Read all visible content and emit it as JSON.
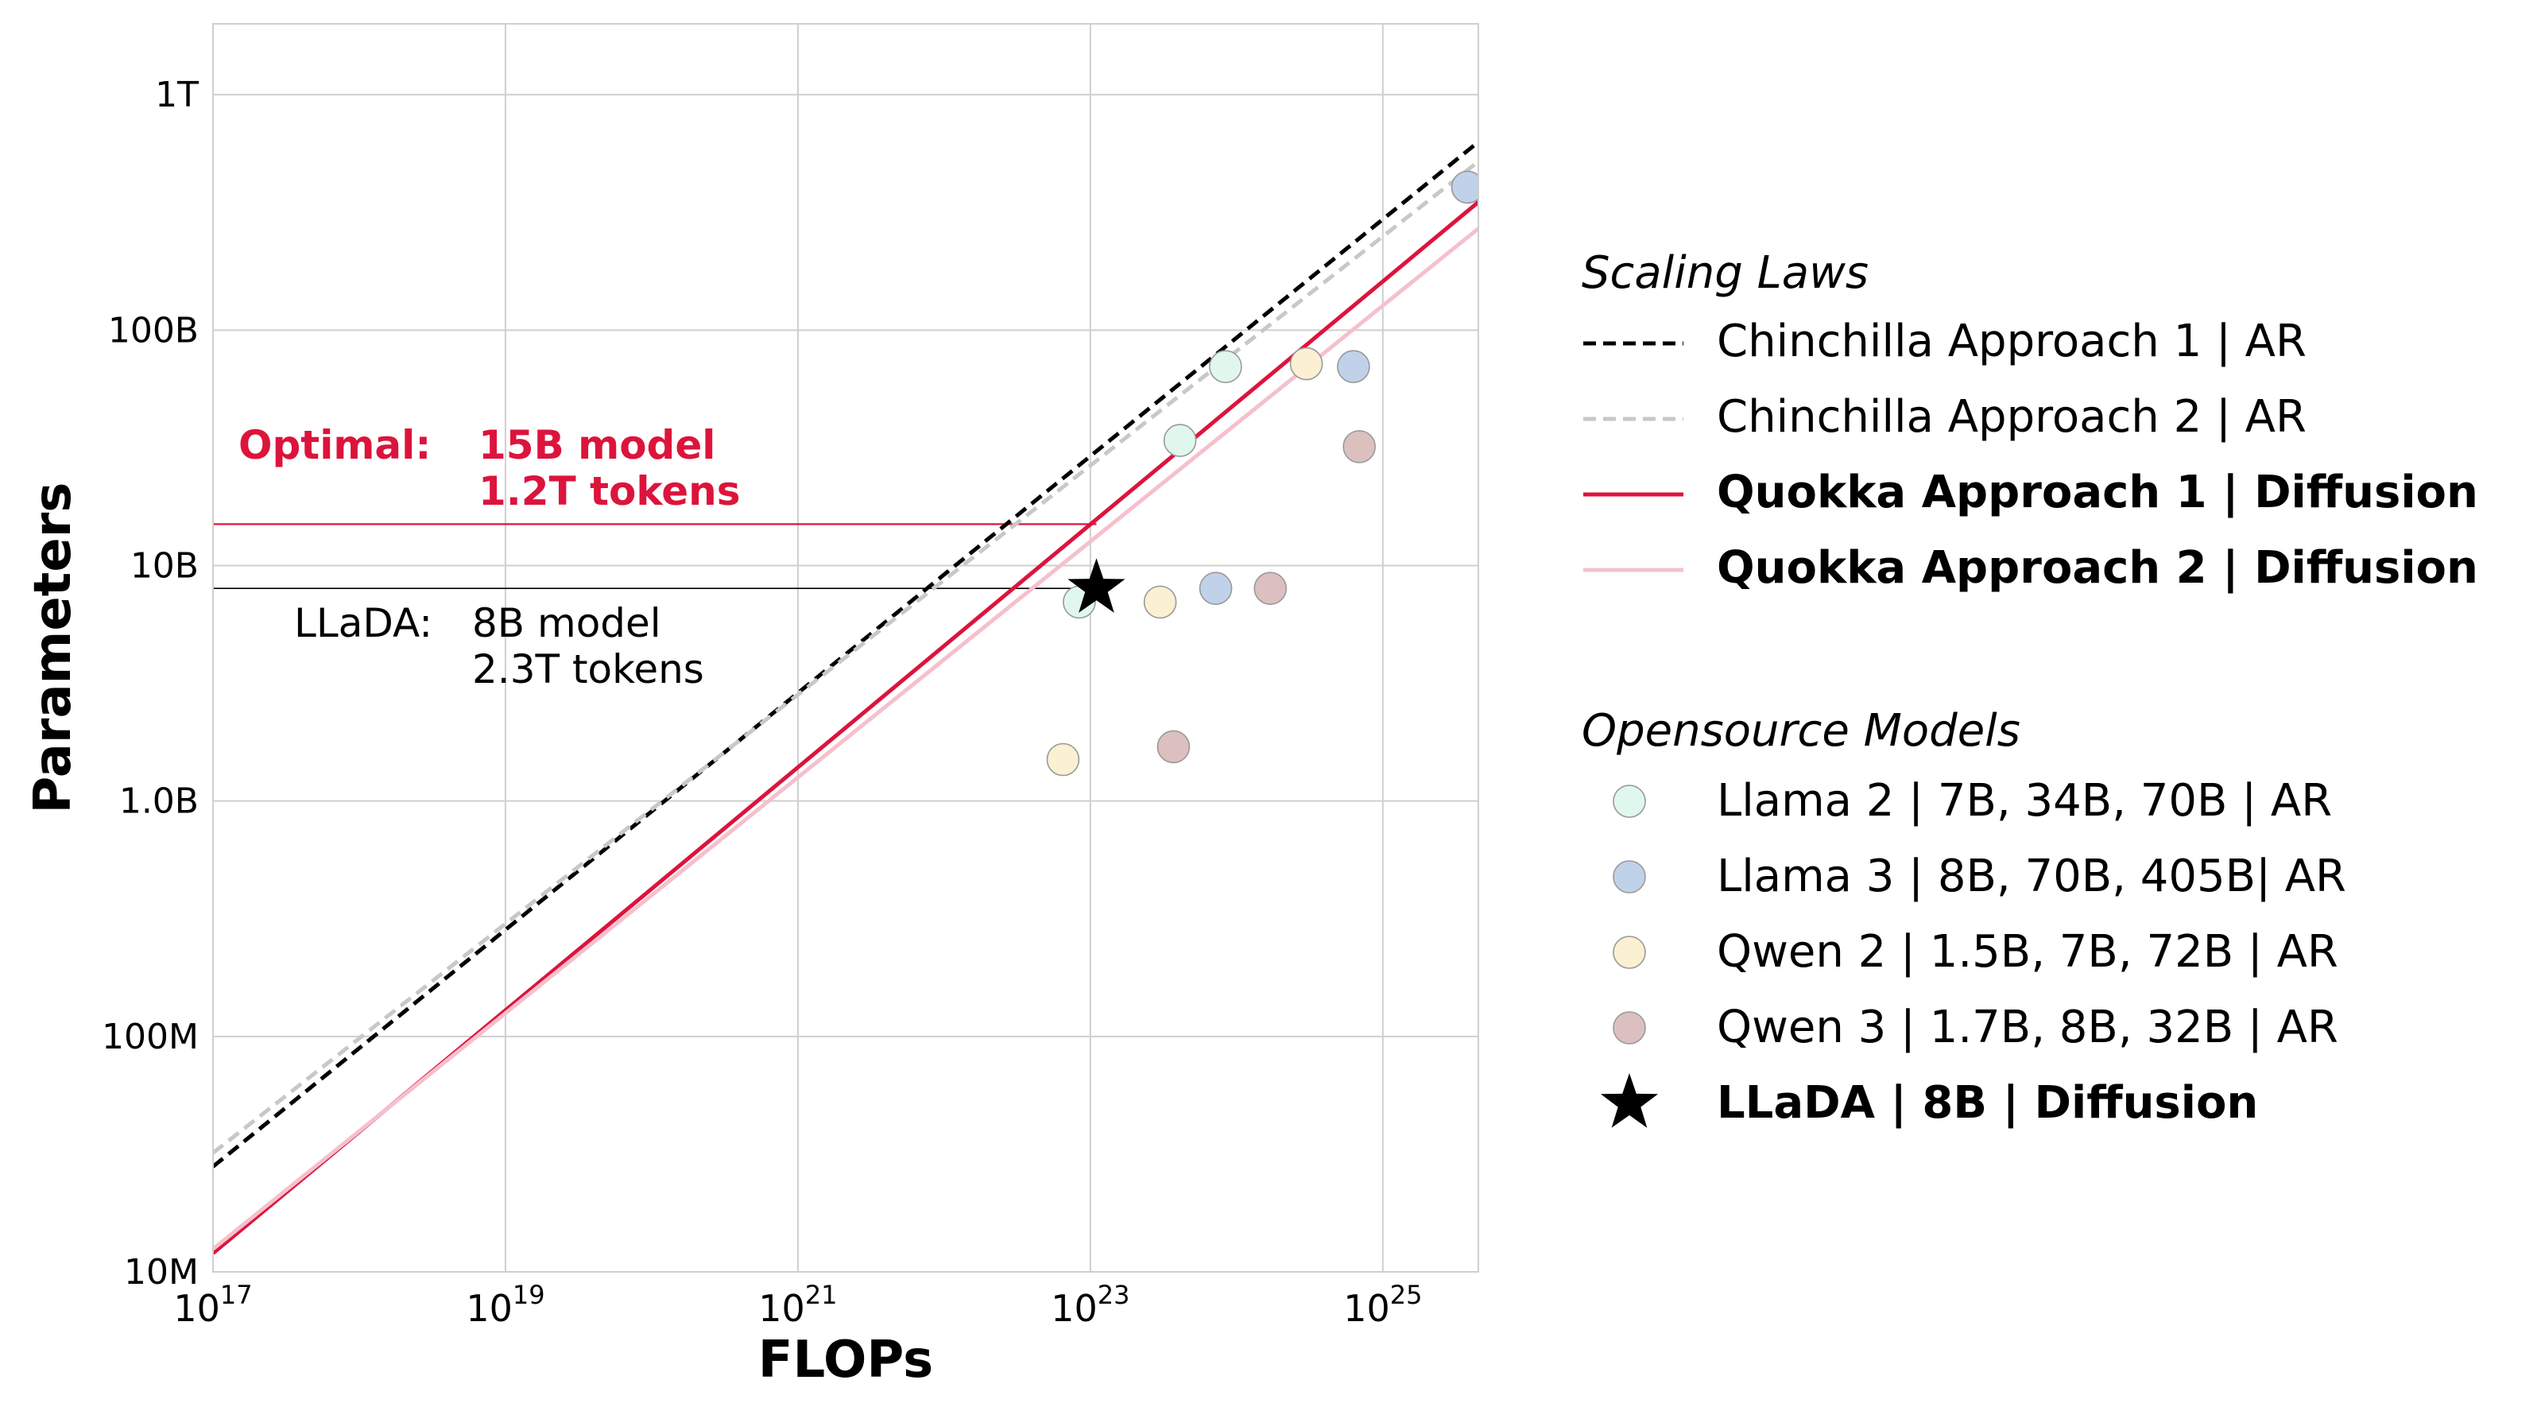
{
  "chart_data": {
    "type": "scatter",
    "xlabel": "FLOPs",
    "ylabel": "Parameters",
    "x_scale": "log",
    "y_scale": "log",
    "xlim": [
      1e+17,
      4.5e+25
    ],
    "ylim": [
      10000000.0,
      2000000000000.0
    ],
    "grid": true,
    "x_ticks": [
      {
        "value": 1e+17,
        "base": "10",
        "exp": "17"
      },
      {
        "value": 1e+19,
        "base": "10",
        "exp": "19"
      },
      {
        "value": 1e+21,
        "base": "10",
        "exp": "21"
      },
      {
        "value": 1e+23,
        "base": "10",
        "exp": "23"
      },
      {
        "value": 1e+25,
        "base": "10",
        "exp": "25"
      }
    ],
    "y_ticks": [
      {
        "value": 10000000.0,
        "label": "10M"
      },
      {
        "value": 100000000.0,
        "label": "100M"
      },
      {
        "value": 1000000000.0,
        "label": "1.0B"
      },
      {
        "value": 10000000000.0,
        "label": "10B"
      },
      {
        "value": 100000000000.0,
        "label": "100B"
      },
      {
        "value": 1000000000000.0,
        "label": "1T"
      }
    ],
    "scaling_laws": [
      {
        "name": "Chinchilla Approach 1 | AR",
        "color": "#000000",
        "dash": "dashed",
        "bold": false,
        "points": [
          [
            1e+17,
            28000000.0
          ],
          [
            4.5e+25,
            630000000000.0
          ]
        ]
      },
      {
        "name": "Chinchilla Approach 2 | AR",
        "color": "#c8c8c8",
        "dash": "dashed",
        "bold": false,
        "points": [
          [
            1e+17,
            32000000.0
          ],
          [
            4.5e+25,
            520000000000.0
          ]
        ]
      },
      {
        "name": "Quokka Approach 1 | Diffusion",
        "color": "#dc143c",
        "dash": "solid",
        "bold": true,
        "points": [
          [
            1e+17,
            12000000.0
          ],
          [
            4.5e+25,
            350000000000.0
          ]
        ]
      },
      {
        "name": "Quokka Approach 2 | Diffusion",
        "color": "#f5c0cc",
        "dash": "solid",
        "bold": true,
        "points": [
          [
            1e+17,
            12500000.0
          ],
          [
            4.5e+25,
            270000000000.0
          ]
        ]
      }
    ],
    "models": [
      {
        "name": "Llama 2 | 7B, 34B, 70B | AR",
        "color": "#e0f7ee",
        "marker": "circle",
        "bold": false,
        "points": [
          [
            8.4e+22,
            7000000000.0
          ],
          [
            4.1e+23,
            34000000000.0
          ],
          [
            8.4e+23,
            70000000000.0
          ]
        ]
      },
      {
        "name": "Llama 3 | 8B, 70B, 405B| AR",
        "color": "#c0d2ea",
        "marker": "circle",
        "bold": false,
        "points": [
          [
            7.2e+23,
            8000000000.0
          ],
          [
            6.3e+24,
            70000000000.0
          ],
          [
            3.8e+25,
            405000000000.0
          ]
        ]
      },
      {
        "name": "Qwen 2 | 1.5B, 7B, 72B | AR",
        "color": "#fbf0d2",
        "marker": "circle",
        "bold": false,
        "points": [
          [
            6.5e+22,
            1500000000.0
          ],
          [
            3e+23,
            7000000000.0
          ],
          [
            3e+24,
            72000000000.0
          ]
        ]
      },
      {
        "name": "Qwen 3 | 1.7B, 8B, 32B | AR",
        "color": "#dcc0c0",
        "marker": "circle",
        "bold": false,
        "points": [
          [
            3.7e+23,
            1700000000.0
          ],
          [
            1.7e+24,
            8000000000.0
          ],
          [
            6.9e+24,
            32000000000.0
          ]
        ]
      },
      {
        "name": "LLaDA | 8B | Diffusion",
        "color": "#000000",
        "marker": "star",
        "bold": true,
        "points": [
          [
            1.1e+23,
            8000000000.0
          ]
        ]
      }
    ],
    "guides": [
      {
        "color": "#dc143c",
        "width": 2.2,
        "y": 15000000000.0,
        "x_end": 1.1e+23
      },
      {
        "color": "#000000",
        "width": 1.6,
        "y": 8000000000.0,
        "x_end": 1.1e+23
      }
    ],
    "legend": {
      "placement": "right",
      "scaling_title": "Scaling Laws",
      "models_title": "Opensource Models"
    },
    "annotations": {
      "optimal_label": "Optimal:",
      "optimal_line1": "15B model",
      "optimal_line2": "1.2T tokens",
      "llada_label": "LLaDA:",
      "llada_line1": "8B model",
      "llada_line2": "2.3T tokens"
    }
  }
}
